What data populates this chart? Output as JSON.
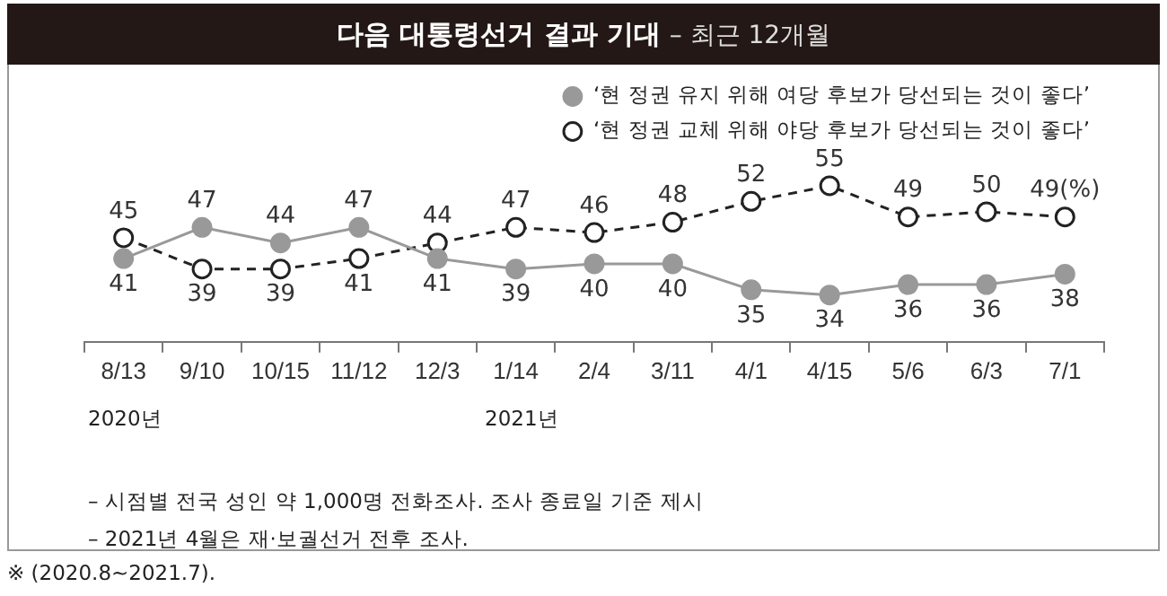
{
  "chart_data": {
    "type": "line",
    "title": "다음 대통령선거 결과 기대",
    "subtitle": "– 최근 12개월",
    "categories": [
      "8/13",
      "9/10",
      "10/15",
      "11/12",
      "12/3",
      "1/14",
      "2/4",
      "3/11",
      "4/1",
      "4/15",
      "5/6",
      "6/3",
      "7/1"
    ],
    "series": [
      {
        "name": "‘현 정권 유지 위해 여당 후보가 당선되는 것이 좋다’",
        "color": "#999999",
        "line_style": "solid",
        "values": [
          41,
          47,
          44,
          47,
          41,
          39,
          40,
          40,
          35,
          34,
          36,
          36,
          38
        ],
        "value_labels": [
          "41",
          "47",
          "44",
          "47",
          "41",
          "39",
          "40",
          "40",
          "35",
          "34",
          "36",
          "36",
          "38"
        ]
      },
      {
        "name": "‘현 정권 교체 위해 야당 후보가 당선되는 것이 좋다’",
        "color": "#222222",
        "line_style": "dashed",
        "values": [
          45,
          39,
          39,
          41,
          44,
          47,
          46,
          48,
          52,
          55,
          49,
          50,
          49
        ],
        "value_labels": [
          "45",
          "39",
          "39",
          "41",
          "44",
          "47",
          "46",
          "48",
          "52",
          "55",
          "49",
          "50",
          "49(%)"
        ]
      }
    ],
    "tick_labels": "x",
    "marker": "circle",
    "grid": false,
    "legend": "top right",
    "annotations": [
      "2020년",
      "2021년",
      "– 시점별 전국 성인 약 1,000명 전화조사. 조사 종료일 기준 제시",
      "– 2021년 4월은 재·보궐선거 전후 조사.",
      "※ (2020.8~2021.7)."
    ]
  }
}
